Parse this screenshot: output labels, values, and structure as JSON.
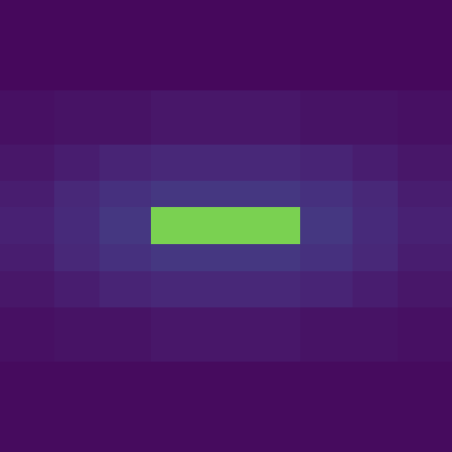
{
  "chart_data": {
    "type": "heatmap",
    "x_edges": [
      0,
      60,
      110,
      167,
      250,
      332,
      390,
      440,
      500
    ],
    "y_edges": [
      0,
      100,
      160,
      200,
      229,
      270,
      300,
      340,
      400,
      500
    ],
    "cells": [
      [
        0.02,
        0.02,
        0.02,
        0.02,
        0.02,
        0.02,
        0.02,
        0.02
      ],
      [
        0.04,
        0.05,
        0.05,
        0.06,
        0.06,
        0.05,
        0.05,
        0.04
      ],
      [
        0.06,
        0.08,
        0.1,
        0.11,
        0.11,
        0.1,
        0.08,
        0.06
      ],
      [
        0.08,
        0.11,
        0.14,
        0.16,
        0.16,
        0.14,
        0.11,
        0.08
      ],
      [
        0.09,
        0.12,
        0.16,
        0.8,
        0.8,
        0.16,
        0.12,
        0.09
      ],
      [
        0.08,
        0.11,
        0.14,
        0.16,
        0.16,
        0.14,
        0.11,
        0.08
      ],
      [
        0.06,
        0.08,
        0.1,
        0.11,
        0.11,
        0.1,
        0.08,
        0.06
      ],
      [
        0.04,
        0.05,
        0.05,
        0.06,
        0.06,
        0.05,
        0.05,
        0.04
      ],
      [
        0.03,
        0.03,
        0.03,
        0.03,
        0.03,
        0.03,
        0.03,
        0.03
      ]
    ],
    "color_range": [
      0,
      1
    ],
    "xlim": [
      0,
      500
    ],
    "ylim": [
      500,
      0
    ],
    "tick_labels": false
  }
}
